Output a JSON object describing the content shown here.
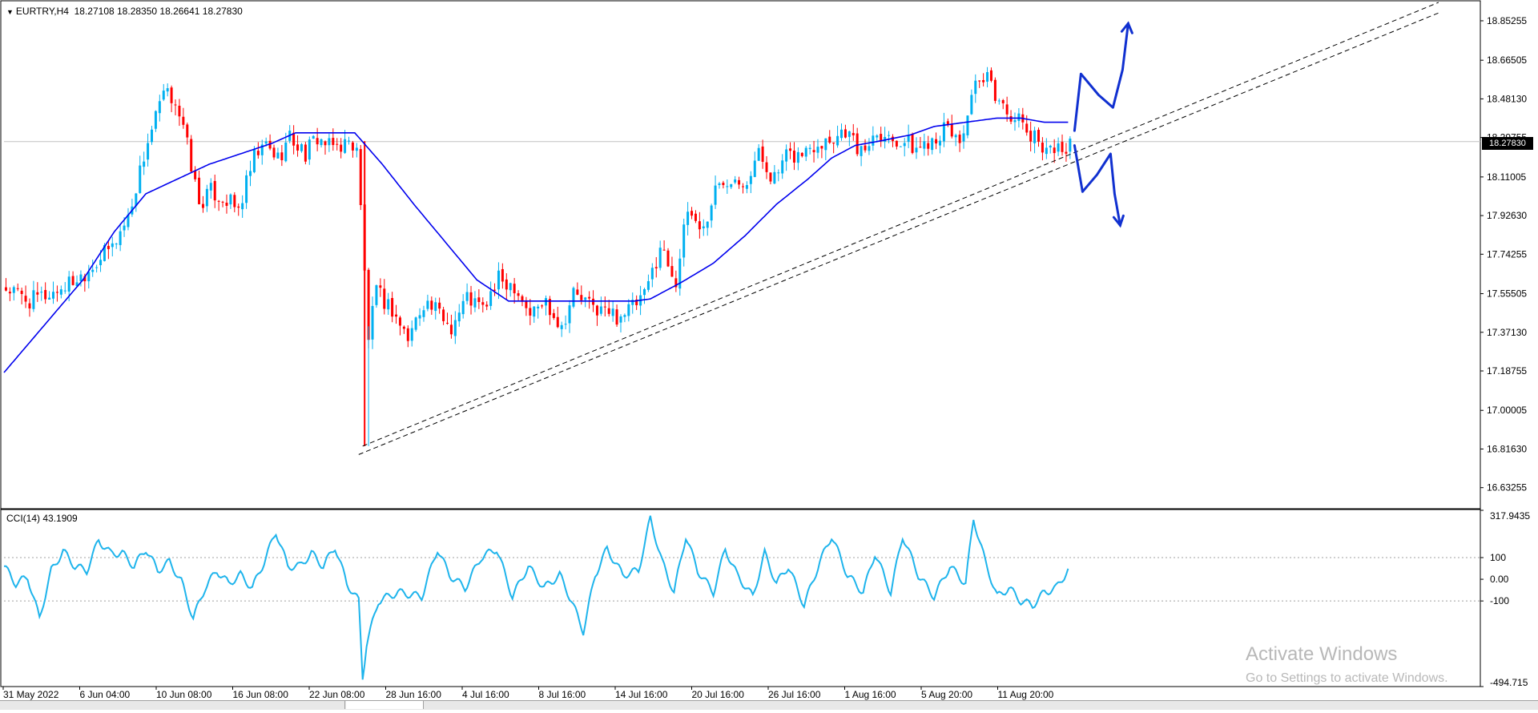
{
  "header": {
    "symbol_timeframe": "EURTRY,H4",
    "ohlc": "18.27108 18.28350 18.26641 18.27830"
  },
  "price_axis": {
    "labels": [
      "18.85255",
      "18.66505",
      "18.48130",
      "18.29755",
      "18.11005",
      "17.92630",
      "17.74255",
      "17.55505",
      "17.37130",
      "17.18755",
      "17.00005",
      "16.81630",
      "16.63255"
    ],
    "current_price": "18.27830"
  },
  "time_axis": {
    "labels": [
      "31 May 2022",
      "6 Jun 04:00",
      "10 Jun 08:00",
      "16 Jun 08:00",
      "22 Jun 08:00",
      "28 Jun 16:00",
      "4 Jul 16:00",
      "8 Jul 16:00",
      "14 Jul 16:00",
      "20 Jul 16:00",
      "26 Jul 16:00",
      "1 Aug 16:00",
      "5 Aug 20:00",
      "11 Aug 20:00"
    ]
  },
  "indicator": {
    "label": "CCI(14) 43.1909",
    "axis_labels": [
      "317.9435",
      "100",
      "0.00",
      "-100",
      "-494.715"
    ]
  },
  "watermark": {
    "title": "Activate Windows",
    "subtitle": "Go to Settings to activate Windows."
  },
  "colors": {
    "bull": "#00B0F0",
    "bear": "#FF0000",
    "ma": "#0000EE",
    "cci": "#1EB4EC",
    "annotation": "#1030D0",
    "price_line": "#C0C0C0",
    "trendline": "#000000"
  },
  "chart_data": [
    {
      "type": "candlestick",
      "title": "",
      "symbol": "EURTRY",
      "timeframe": "H4",
      "ylim": [
        16.54,
        18.94
      ],
      "x_labels": [
        "31 May 2022",
        "6 Jun 04:00",
        "10 Jun 08:00",
        "16 Jun 08:00",
        "22 Jun 08:00",
        "28 Jun 16:00",
        "4 Jul 16:00",
        "8 Jul 16:00",
        "14 Jul 16:00",
        "20 Jul 16:00",
        "26 Jul 16:00",
        "1 Aug 16:00",
        "5 Aug 20:00",
        "11 Aug 20:00"
      ],
      "price_path": [
        [
          0,
          17.58
        ],
        [
          6,
          17.52
        ],
        [
          12,
          17.56
        ],
        [
          19,
          17.64
        ],
        [
          27,
          17.78
        ],
        [
          31,
          17.92
        ],
        [
          36,
          18.28
        ],
        [
          40,
          18.5
        ],
        [
          43,
          18.48
        ],
        [
          46,
          18.26
        ],
        [
          49,
          17.98
        ],
        [
          52,
          18.04
        ],
        [
          56,
          18.0
        ],
        [
          59,
          17.95
        ],
        [
          63,
          18.2
        ],
        [
          66,
          18.26
        ],
        [
          69,
          18.2
        ],
        [
          72,
          18.3
        ],
        [
          76,
          18.22
        ],
        [
          79,
          18.3
        ],
        [
          82,
          18.25
        ],
        [
          86,
          18.27
        ],
        [
          89,
          18.26
        ],
        [
          92,
          17.35
        ],
        [
          94,
          17.56
        ],
        [
          98,
          17.48
        ],
        [
          102,
          17.34
        ],
        [
          106,
          17.52
        ],
        [
          110,
          17.46
        ],
        [
          113,
          17.4
        ],
        [
          117,
          17.54
        ],
        [
          121,
          17.48
        ],
        [
          125,
          17.62
        ],
        [
          129,
          17.6
        ],
        [
          133,
          17.46
        ],
        [
          137,
          17.52
        ],
        [
          141,
          17.4
        ],
        [
          144,
          17.56
        ],
        [
          148,
          17.5
        ],
        [
          152,
          17.47
        ],
        [
          155,
          17.45
        ],
        [
          159,
          17.49
        ],
        [
          162,
          17.54
        ],
        [
          166,
          17.78
        ],
        [
          170,
          17.62
        ],
        [
          173,
          17.95
        ],
        [
          177,
          17.86
        ],
        [
          180,
          18.05
        ],
        [
          184,
          18.12
        ],
        [
          188,
          18.1
        ],
        [
          191,
          18.22
        ],
        [
          195,
          18.1
        ],
        [
          198,
          18.2
        ],
        [
          202,
          18.22
        ],
        [
          206,
          18.28
        ],
        [
          210,
          18.3
        ],
        [
          213,
          18.34
        ],
        [
          217,
          18.22
        ],
        [
          221,
          18.34
        ],
        [
          224,
          18.3
        ],
        [
          228,
          18.28
        ],
        [
          231,
          18.24
        ],
        [
          235,
          18.3
        ],
        [
          239,
          18.34
        ],
        [
          242,
          18.28
        ],
        [
          246,
          18.53
        ],
        [
          249,
          18.57
        ],
        [
          253,
          18.44
        ],
        [
          256,
          18.4
        ],
        [
          260,
          18.3
        ],
        [
          264,
          18.26
        ],
        [
          267,
          18.24
        ],
        [
          270,
          18.27
        ]
      ],
      "moving_average": [
        [
          0,
          17.18
        ],
        [
          10,
          17.4
        ],
        [
          20,
          17.62
        ],
        [
          28,
          17.85
        ],
        [
          36,
          18.03
        ],
        [
          44,
          18.1
        ],
        [
          52,
          18.17
        ],
        [
          60,
          18.22
        ],
        [
          68,
          18.27
        ],
        [
          74,
          18.32
        ],
        [
          80,
          18.32
        ],
        [
          86,
          18.32
        ],
        [
          89,
          18.32
        ],
        [
          96,
          18.17
        ],
        [
          104,
          17.98
        ],
        [
          112,
          17.8
        ],
        [
          120,
          17.62
        ],
        [
          128,
          17.52
        ],
        [
          134,
          17.52
        ],
        [
          144,
          17.52
        ],
        [
          160,
          17.52
        ],
        [
          164,
          17.53
        ],
        [
          172,
          17.61
        ],
        [
          180,
          17.7
        ],
        [
          188,
          17.83
        ],
        [
          196,
          17.98
        ],
        [
          204,
          18.1
        ],
        [
          210,
          18.2
        ],
        [
          216,
          18.26
        ],
        [
          222,
          18.28
        ],
        [
          230,
          18.31
        ],
        [
          236,
          18.35
        ],
        [
          244,
          18.37
        ],
        [
          252,
          18.39
        ],
        [
          258,
          18.39
        ],
        [
          264,
          18.37
        ],
        [
          270,
          18.37
        ]
      ],
      "trendlines": [
        {
          "from": [
            91,
            16.83
          ],
          "to": [
            364,
            18.94
          ]
        },
        {
          "from": [
            90,
            16.79
          ],
          "to": [
            364,
            18.89
          ]
        }
      ],
      "current_price": 18.2783
    },
    {
      "type": "line",
      "title": "",
      "name": "CCI(14)",
      "ylim": [
        -494.715,
        317.9435
      ],
      "levels": [
        100,
        0,
        -100
      ],
      "values": [
        [
          0,
          60
        ],
        [
          3,
          -20
        ],
        [
          6,
          10
        ],
        [
          9,
          -180
        ],
        [
          12,
          40
        ],
        [
          15,
          130
        ],
        [
          18,
          60
        ],
        [
          21,
          40
        ],
        [
          24,
          180
        ],
        [
          27,
          120
        ],
        [
          30,
          120
        ],
        [
          33,
          60
        ],
        [
          36,
          140
        ],
        [
          39,
          40
        ],
        [
          42,
          80
        ],
        [
          45,
          -10
        ],
        [
          48,
          -180
        ],
        [
          51,
          -40
        ],
        [
          54,
          40
        ],
        [
          57,
          -20
        ],
        [
          60,
          20
        ],
        [
          63,
          -40
        ],
        [
          66,
          80
        ],
        [
          69,
          220
        ],
        [
          72,
          60
        ],
        [
          75,
          60
        ],
        [
          78,
          120
        ],
        [
          81,
          60
        ],
        [
          84,
          150
        ],
        [
          87,
          -20
        ],
        [
          90,
          -100
        ],
        [
          91,
          -450
        ],
        [
          92,
          -300
        ],
        [
          95,
          -100
        ],
        [
          100,
          -60
        ],
        [
          106,
          -80
        ],
        [
          110,
          140
        ],
        [
          113,
          20
        ],
        [
          117,
          -40
        ],
        [
          121,
          100
        ],
        [
          125,
          140
        ],
        [
          129,
          -80
        ],
        [
          133,
          60
        ],
        [
          137,
          -40
        ],
        [
          141,
          20
        ],
        [
          144,
          -100
        ],
        [
          147,
          -240
        ],
        [
          150,
          20
        ],
        [
          153,
          140
        ],
        [
          157,
          20
        ],
        [
          161,
          40
        ],
        [
          164,
          280
        ],
        [
          167,
          80
        ],
        [
          170,
          -60
        ],
        [
          173,
          200
        ],
        [
          176,
          40
        ],
        [
          180,
          -60
        ],
        [
          183,
          140
        ],
        [
          186,
          20
        ],
        [
          190,
          -80
        ],
        [
          193,
          120
        ],
        [
          196,
          -20
        ],
        [
          199,
          60
        ],
        [
          203,
          -120
        ],
        [
          207,
          80
        ],
        [
          210,
          200
        ],
        [
          214,
          20
        ],
        [
          218,
          -60
        ],
        [
          221,
          120
        ],
        [
          225,
          -60
        ],
        [
          228,
          200
        ],
        [
          232,
          20
        ],
        [
          236,
          -80
        ],
        [
          240,
          60
        ],
        [
          244,
          -20
        ],
        [
          246,
          280
        ],
        [
          249,
          80
        ],
        [
          252,
          -80
        ],
        [
          255,
          -40
        ],
        [
          258,
          -100
        ],
        [
          261,
          -120
        ],
        [
          264,
          -60
        ],
        [
          267,
          -40
        ],
        [
          270,
          43.19
        ]
      ]
    }
  ]
}
